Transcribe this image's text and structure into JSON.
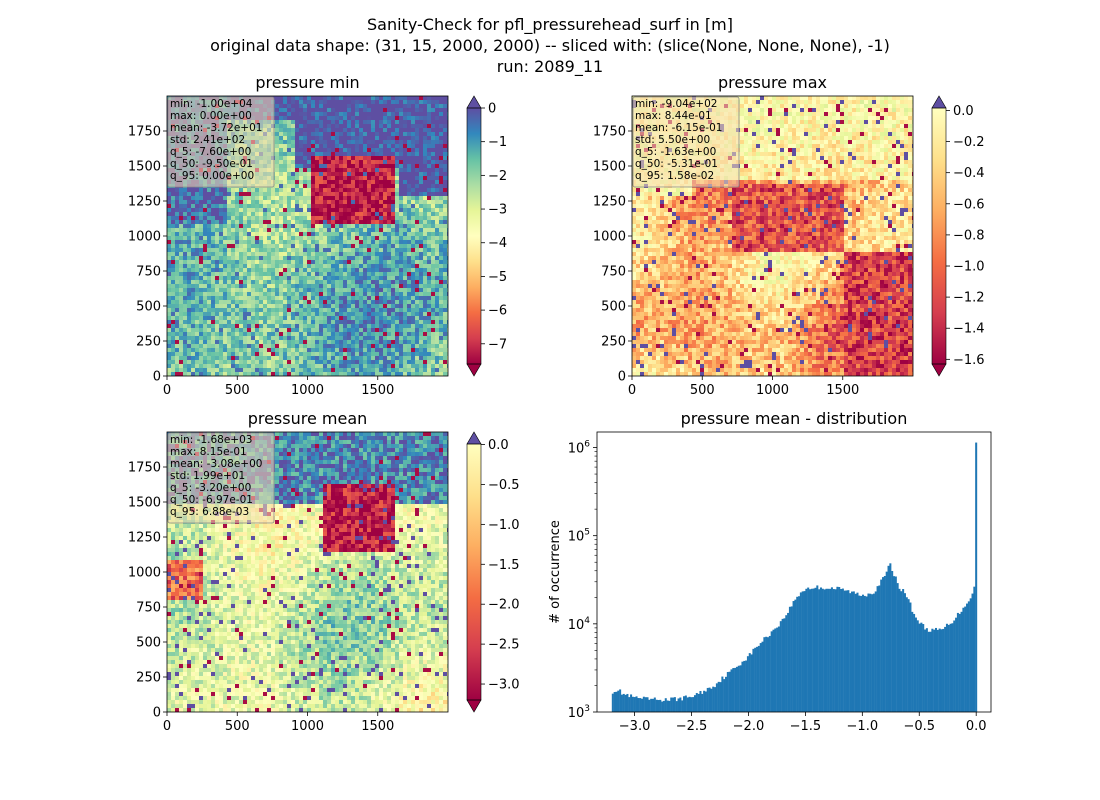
{
  "figure": {
    "suptitle": [
      "Sanity-Check for pfl_pressurehead_surf in [m]",
      "original data shape: (31, 15, 2000, 2000) -- sliced with: (slice(None, None, None), -1)",
      "run: 2089_11"
    ]
  },
  "chart_data": [
    {
      "type": "heatmap",
      "title": "pressure min",
      "colormap": "Spectral",
      "colormap_extend": "both",
      "over_color": "#5e4fa2",
      "under_color": "#9e0142",
      "xlim": [
        0,
        2000
      ],
      "ylim": [
        0,
        2000
      ],
      "xticks": [
        "0",
        "500",
        "1000",
        "1500"
      ],
      "xtick_values": [
        0,
        500,
        1000,
        1500
      ],
      "yticks": [
        "0",
        "250",
        "500",
        "750",
        "1000",
        "1250",
        "1500",
        "1750"
      ],
      "ytick_values": [
        0,
        250,
        500,
        750,
        1000,
        1250,
        1500,
        1750
      ],
      "clim": [
        -7.6,
        0.0
      ],
      "colorbar_ticks": [
        "0",
        "−1",
        "−2",
        "−3",
        "−4",
        "−5",
        "−6",
        "−7"
      ],
      "colorbar_tick_values": [
        0,
        -1,
        -2,
        -3,
        -4,
        -5,
        -6,
        -7
      ],
      "stats": [
        "min: -1.00e+04",
        "max: 0.00e+00",
        "mean: -3.72e+01",
        "std: 2.41e+02",
        "q_5: -7.60e+00",
        "q_50: -9.50e-01",
        "q_95: 0.00e+00"
      ]
    },
    {
      "type": "heatmap",
      "title": "pressure max",
      "colormap": "Spectral",
      "colormap_extend": "both",
      "over_color": "#5e4fa2",
      "under_color": "#9e0142",
      "xlim": [
        0,
        2000
      ],
      "ylim": [
        0,
        2000
      ],
      "xticks": [
        "0",
        "500",
        "1000",
        "1500"
      ],
      "xtick_values": [
        0,
        500,
        1000,
        1500
      ],
      "yticks": [
        "0",
        "250",
        "500",
        "750",
        "1000",
        "1250",
        "1500",
        "1750"
      ],
      "ytick_values": [
        0,
        250,
        500,
        750,
        1000,
        1250,
        1500,
        1750
      ],
      "clim": [
        -1.63,
        0.0158
      ],
      "colorbar_ticks": [
        "0.0",
        "−0.2",
        "−0.4",
        "−0.6",
        "−0.8",
        "−1.0",
        "−1.2",
        "−1.4",
        "−1.6"
      ],
      "colorbar_tick_values": [
        0.0,
        -0.2,
        -0.4,
        -0.6,
        -0.8,
        -1.0,
        -1.2,
        -1.4,
        -1.6
      ],
      "stats": [
        "min: -9.04e+02",
        "max: 8.44e-01",
        "mean: -6.15e-01",
        "std: 5.50e+00",
        "q_5: -1.63e+00",
        "q_50: -5.31e-01",
        "q_95: 1.58e-02"
      ]
    },
    {
      "type": "heatmap",
      "title": "pressure mean",
      "colormap": "Spectral",
      "colormap_extend": "both",
      "over_color": "#5e4fa2",
      "under_color": "#9e0142",
      "xlim": [
        0,
        2000
      ],
      "ylim": [
        0,
        2000
      ],
      "xticks": [
        "0",
        "500",
        "1000",
        "1500"
      ],
      "xtick_values": [
        0,
        500,
        1000,
        1500
      ],
      "yticks": [
        "0",
        "250",
        "500",
        "750",
        "1000",
        "1250",
        "1500",
        "1750"
      ],
      "ytick_values": [
        0,
        250,
        500,
        750,
        1000,
        1250,
        1500,
        1750
      ],
      "clim": [
        -3.2,
        0.00688
      ],
      "colorbar_ticks": [
        "0.0",
        "−0.5",
        "−1.0",
        "−1.5",
        "−2.0",
        "−2.5",
        "−3.0"
      ],
      "colorbar_tick_values": [
        0.0,
        -0.5,
        -1.0,
        -1.5,
        -2.0,
        -2.5,
        -3.0
      ],
      "stats": [
        "min: -1.68e+03",
        "max: 8.15e-01",
        "mean: -3.08e+00",
        "std: 1.99e+01",
        "q_5: -3.20e+00",
        "q_50: -6.97e-01",
        "q_95: 6.88e-03"
      ]
    },
    {
      "type": "bar",
      "title": "pressure mean - distribution",
      "ylabel": "# of occurrence",
      "xlabel": "",
      "yscale": "log",
      "bar_color": "#1f77b4",
      "xlim": [
        -3.33,
        0.13
      ],
      "ylim": [
        1000,
        1500000
      ],
      "xticks": [
        "−3.0",
        "−2.5",
        "−2.0",
        "−1.5",
        "−1.0",
        "−0.5",
        "0.0"
      ],
      "xtick_values": [
        -3.0,
        -2.5,
        -2.0,
        -1.5,
        -1.0,
        -0.5,
        0.0
      ],
      "ytick_labels": [
        {
          "base": "10",
          "exp": "3",
          "value": 1000
        },
        {
          "base": "10",
          "exp": "4",
          "value": 10000
        },
        {
          "base": "10",
          "exp": "5",
          "value": 100000
        },
        {
          "base": "10",
          "exp": "6",
          "value": 1000000
        }
      ],
      "bin_start": -3.2,
      "bin_end": 0.0069,
      "profile": [
        [
          -3.2,
          1700
        ],
        [
          -3.15,
          1800
        ],
        [
          -3.1,
          1600
        ],
        [
          -3.0,
          1450
        ],
        [
          -2.9,
          1400
        ],
        [
          -2.8,
          1380
        ],
        [
          -2.7,
          1380
        ],
        [
          -2.6,
          1420
        ],
        [
          -2.5,
          1500
        ],
        [
          -2.4,
          1700
        ],
        [
          -2.3,
          2000
        ],
        [
          -2.2,
          2600
        ],
        [
          -2.1,
          3300
        ],
        [
          -2.0,
          4300
        ],
        [
          -1.9,
          6000
        ],
        [
          -1.8,
          8000
        ],
        [
          -1.7,
          11000
        ],
        [
          -1.65,
          14000
        ],
        [
          -1.6,
          18000
        ],
        [
          -1.55,
          22000
        ],
        [
          -1.5,
          25000
        ],
        [
          -1.4,
          26000
        ],
        [
          -1.3,
          25500
        ],
        [
          -1.2,
          25000
        ],
        [
          -1.1,
          23000
        ],
        [
          -1.0,
          21000
        ],
        [
          -0.9,
          23000
        ],
        [
          -0.8,
          35000
        ],
        [
          -0.76,
          48000
        ],
        [
          -0.72,
          36000
        ],
        [
          -0.68,
          27000
        ],
        [
          -0.6,
          20000
        ],
        [
          -0.55,
          13000
        ],
        [
          -0.5,
          10500
        ],
        [
          -0.45,
          9000
        ],
        [
          -0.4,
          8400
        ],
        [
          -0.3,
          8600
        ],
        [
          -0.2,
          11000
        ],
        [
          -0.1,
          16000
        ],
        [
          -0.03,
          22000
        ],
        [
          -0.01,
          30000
        ],
        [
          0.0,
          1100000
        ]
      ]
    }
  ]
}
